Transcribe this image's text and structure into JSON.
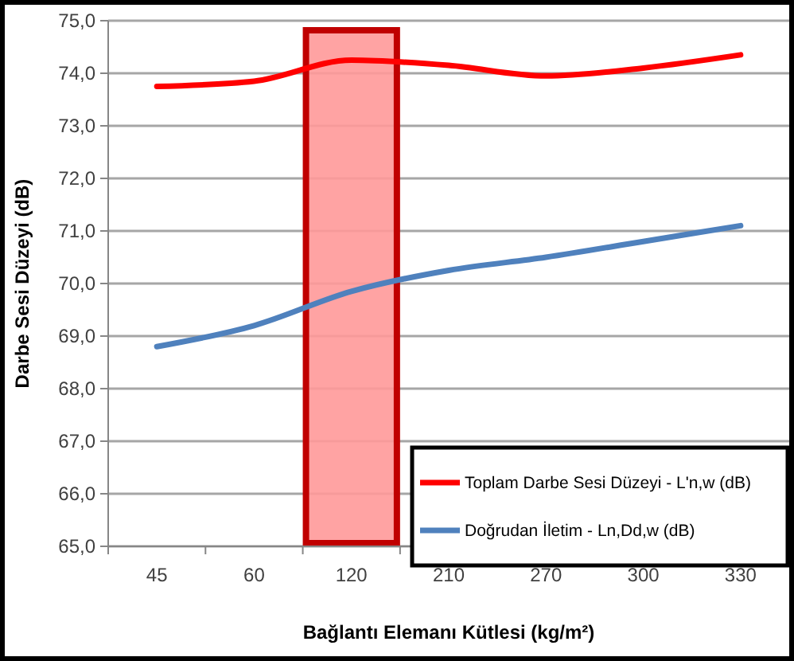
{
  "chart_data": {
    "type": "line",
    "xlabel": "Bağlantı Elemanı Kütlesi (kg/m²)",
    "ylabel": "Darbe Sesi Düzeyi (dB)",
    "categories": [
      "45",
      "60",
      "120",
      "210",
      "270",
      "300",
      "330"
    ],
    "series": [
      {
        "name": "Toplam Darbe Sesi Düzeyi - L'n,w (dB)",
        "color": "#ff0000",
        "values": [
          73.75,
          73.85,
          74.25,
          74.15,
          73.95,
          74.1,
          74.35
        ]
      },
      {
        "name": "Doğrudan İletim - Ln,Dd,w (dB)",
        "color": "#4f81bd",
        "values": [
          68.8,
          69.2,
          69.85,
          70.25,
          70.5,
          70.8,
          71.1
        ]
      }
    ],
    "ylim": [
      65,
      75
    ],
    "yticks": [
      {
        "value": 65,
        "label": "65,0"
      },
      {
        "value": 66,
        "label": "66,0"
      },
      {
        "value": 67,
        "label": "67,0"
      },
      {
        "value": 68,
        "label": "68,0"
      },
      {
        "value": 69,
        "label": "69,0"
      },
      {
        "value": 70,
        "label": "70,0"
      },
      {
        "value": 71,
        "label": "71,0"
      },
      {
        "value": 72,
        "label": "72,0"
      },
      {
        "value": 73,
        "label": "73,0"
      },
      {
        "value": 74,
        "label": "74,0"
      },
      {
        "value": 75,
        "label": "75,0"
      }
    ],
    "grid": "y",
    "legend": "bottom right",
    "line_style": "solid",
    "bands": [
      {
        "axis": "x",
        "from": "120",
        "to": "120",
        "color": "#ff9999"
      }
    ]
  }
}
